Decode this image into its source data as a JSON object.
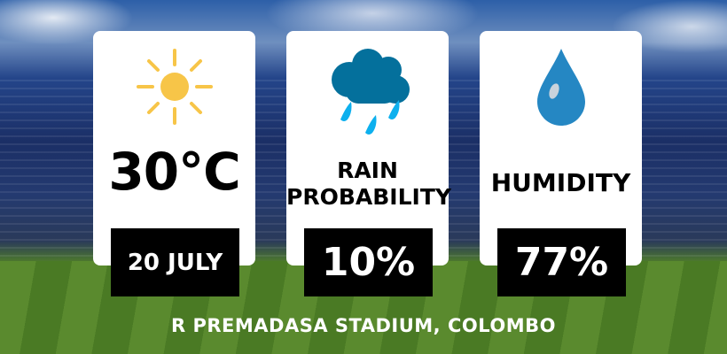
{
  "temperature": {
    "value": "30°C",
    "date": "20 JULY",
    "icon": "sun-icon",
    "icon_color": "#f7c548"
  },
  "rain": {
    "label_line1": "RAIN",
    "label_line2": "PROBABILITY",
    "value": "10%",
    "icon": "rain-cloud-icon",
    "cloud_color": "#04709c",
    "drop_color": "#0db0ee"
  },
  "humidity": {
    "label": "HUMIDITY",
    "value": "77%",
    "icon": "water-drop-icon",
    "icon_color": "#2587c3"
  },
  "venue": "R PREMADASA STADIUM, COLOMBO"
}
